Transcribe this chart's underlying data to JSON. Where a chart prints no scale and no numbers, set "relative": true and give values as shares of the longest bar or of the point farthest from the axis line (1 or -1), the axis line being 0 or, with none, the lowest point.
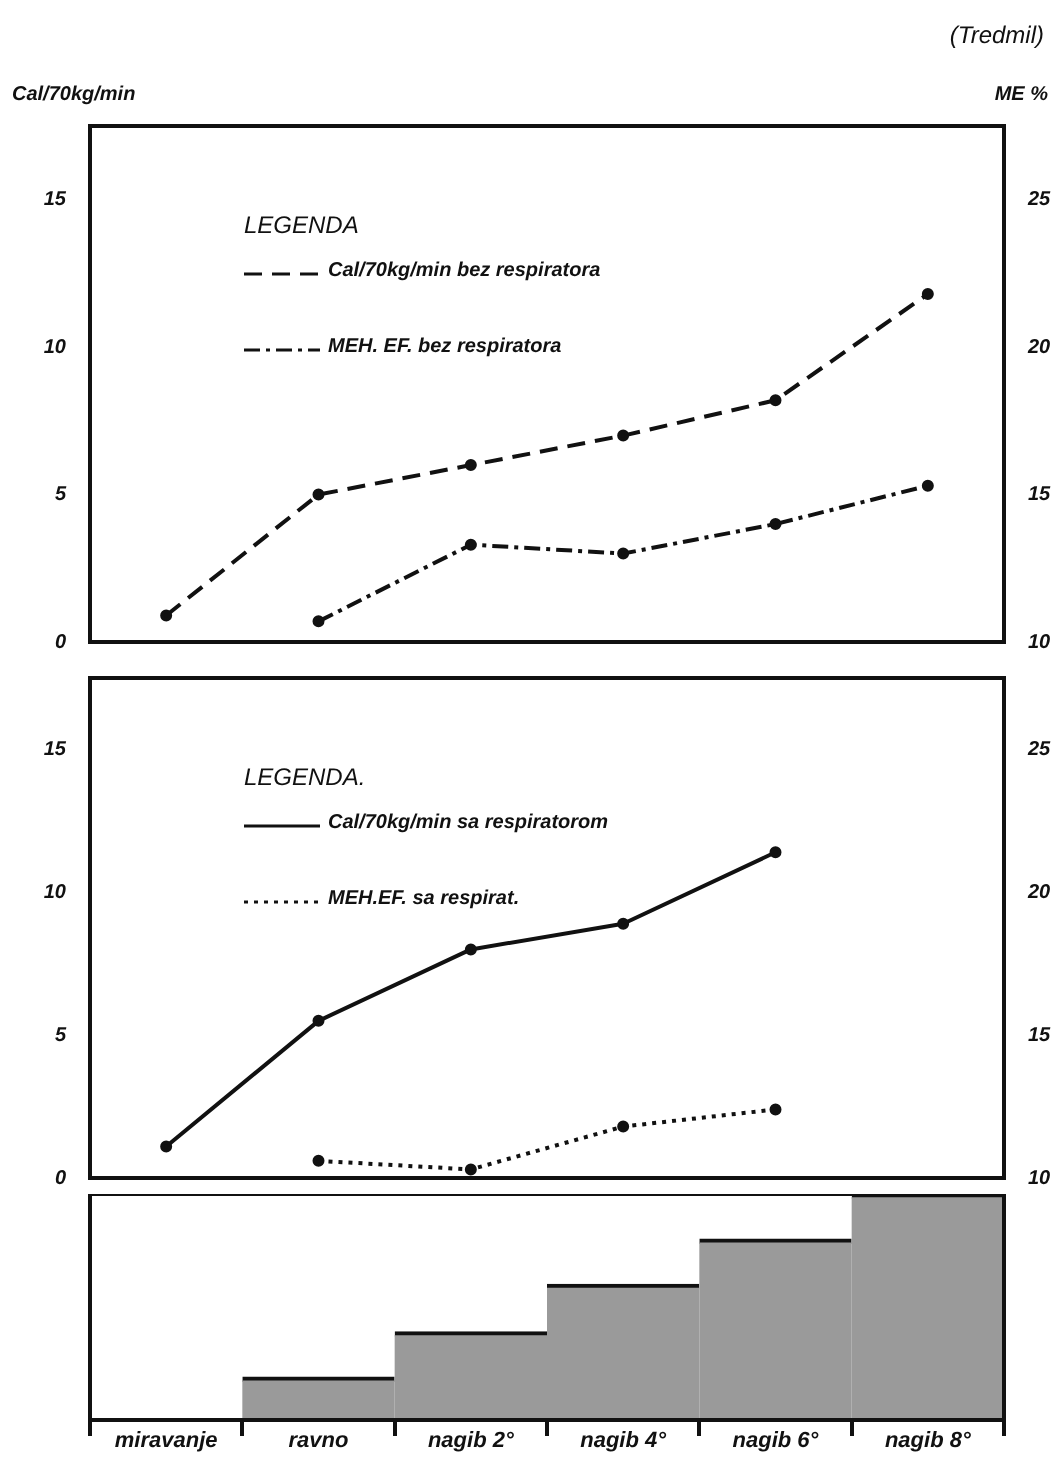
{
  "chart_data": [
    {
      "type": "line",
      "title": "(Tredmil)",
      "ylabel": "Cal/70kg/min",
      "y2label": "ME %",
      "legend_title": "LEGENDA",
      "categories": [
        null,
        null,
        null,
        null,
        null,
        null
      ],
      "series": [
        {
          "name": "Cal/70kg/min bez respiratora",
          "color": "#111111",
          "line_style": "dashed",
          "values": [
            0.9,
            5,
            6,
            7,
            8.2,
            11.8
          ]
        },
        {
          "name": "MEH. EF. bez respiratora",
          "color": "#111111",
          "line_style": "dashdot",
          "axis": "y2",
          "values": [
            null,
            10.7,
            13.3,
            13,
            14,
            15.3
          ]
        }
      ],
      "ylim": [
        0,
        17.5
      ],
      "yticks": [
        0,
        5,
        10,
        15
      ],
      "y2lim": [
        10,
        27.5
      ],
      "y2ticks": [
        10,
        15,
        20,
        25
      ],
      "marker": "circle",
      "legend": "top left",
      "tick_labels": "y"
    },
    {
      "type": "line",
      "legend_title": "LEGENDA.",
      "categories": [
        null,
        null,
        null,
        null,
        null,
        null
      ],
      "series": [
        {
          "name": "Cal/70kg/min sa respiratorom",
          "color": "#111111",
          "line_style": "solid",
          "values": [
            1.1,
            5.5,
            8,
            8.9,
            11.4,
            null
          ]
        },
        {
          "name": "MEH.EF. sa respirat.",
          "color": "#111111",
          "line_style": "dotted",
          "axis": "y2",
          "values": [
            null,
            10.6,
            10.3,
            11.8,
            12.4,
            null
          ]
        }
      ],
      "ylim": [
        0,
        17.5
      ],
      "yticks": [
        0,
        5,
        10,
        15
      ],
      "y2lim": [
        10,
        27.5
      ],
      "y2ticks": [
        10,
        15,
        20,
        25
      ],
      "marker": "circle",
      "legend": "top left",
      "tick_labels": "y"
    },
    {
      "type": "bar",
      "relative": true,
      "categories": [
        "miravanje",
        "ravno",
        "nagib 2°",
        "nagib 4°",
        "nagib 6°",
        "nagib 8°"
      ],
      "values": [
        0,
        0.19,
        0.39,
        0.6,
        0.8,
        1
      ],
      "color": "#9a9a9a"
    }
  ]
}
